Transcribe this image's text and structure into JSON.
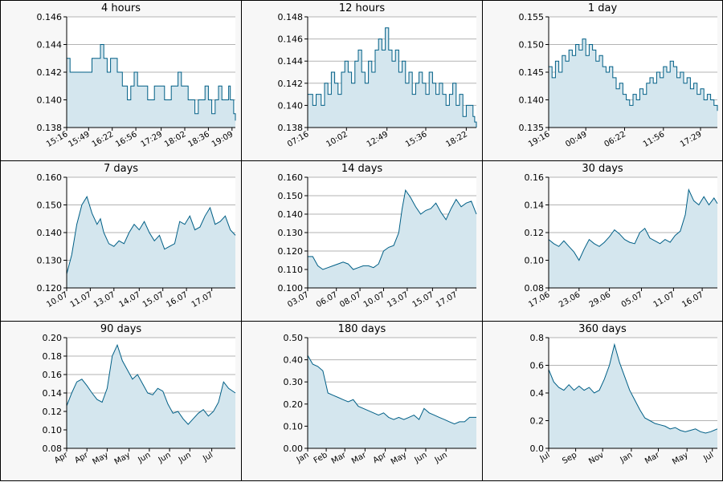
{
  "colors": {
    "line": "#005f86",
    "fill": "#d4e6ee",
    "grid": "#b3b3b3",
    "panel_bg": "#f7f7f7",
    "plot_bg": "#ffffff"
  },
  "chart_data": [
    {
      "type": "area",
      "title": "4 hours",
      "ylim": [
        0.138,
        0.146
      ],
      "yticks": [
        0.138,
        0.14,
        0.142,
        0.144,
        0.146
      ],
      "ytick_labels": [
        "0.138",
        "0.140",
        "0.142",
        "0.144",
        "0.146"
      ],
      "xlim": [
        0,
        100
      ],
      "xtick_labels": [
        "15:16",
        "15:49",
        "16:22",
        "16:56",
        "17:29",
        "18:02",
        "18:36",
        "19:09"
      ],
      "xtick_pos": [
        0,
        13,
        27,
        41,
        56,
        70,
        84,
        98
      ],
      "step": true,
      "x": [
        0,
        2,
        4,
        8,
        12,
        15,
        18,
        20,
        22,
        24,
        26,
        28,
        30,
        33,
        36,
        38,
        40,
        42,
        45,
        48,
        50,
        52,
        55,
        58,
        60,
        62,
        64,
        66,
        68,
        70,
        72,
        74,
        76,
        78,
        80,
        82,
        84,
        86,
        88,
        90,
        92,
        94,
        96,
        97,
        98,
        99,
        100
      ],
      "y": [
        0.143,
        0.142,
        0.142,
        0.142,
        0.142,
        0.143,
        0.143,
        0.144,
        0.143,
        0.142,
        0.143,
        0.143,
        0.142,
        0.141,
        0.14,
        0.141,
        0.142,
        0.141,
        0.141,
        0.14,
        0.14,
        0.141,
        0.141,
        0.14,
        0.14,
        0.141,
        0.141,
        0.142,
        0.141,
        0.141,
        0.14,
        0.14,
        0.139,
        0.14,
        0.14,
        0.141,
        0.14,
        0.139,
        0.14,
        0.141,
        0.14,
        0.14,
        0.141,
        0.14,
        0.14,
        0.139,
        0.1385
      ]
    },
    {
      "type": "area",
      "title": "12 hours",
      "ylim": [
        0.138,
        0.148
      ],
      "yticks": [
        0.138,
        0.14,
        0.142,
        0.144,
        0.146,
        0.148
      ],
      "ytick_labels": [
        "0.138",
        "0.140",
        "0.142",
        "0.144",
        "0.146",
        "0.148"
      ],
      "xlim": [
        0,
        100
      ],
      "xtick_labels": [
        "07:16",
        "10:02",
        "12:49",
        "15:36",
        "18:22"
      ],
      "xtick_pos": [
        0,
        23,
        47,
        70,
        94
      ],
      "step": true,
      "x": [
        0,
        3,
        5,
        8,
        10,
        12,
        14,
        16,
        18,
        20,
        22,
        24,
        26,
        28,
        30,
        32,
        34,
        36,
        38,
        40,
        42,
        44,
        46,
        48,
        50,
        52,
        54,
        56,
        58,
        60,
        62,
        64,
        66,
        68,
        70,
        72,
        74,
        76,
        78,
        80,
        82,
        84,
        86,
        88,
        90,
        92,
        94,
        96,
        97,
        98,
        99,
        100
      ],
      "y": [
        0.141,
        0.14,
        0.141,
        0.14,
        0.142,
        0.141,
        0.143,
        0.142,
        0.141,
        0.143,
        0.144,
        0.143,
        0.142,
        0.144,
        0.145,
        0.143,
        0.142,
        0.144,
        0.143,
        0.145,
        0.146,
        0.145,
        0.147,
        0.145,
        0.144,
        0.145,
        0.143,
        0.144,
        0.142,
        0.143,
        0.141,
        0.142,
        0.143,
        0.142,
        0.141,
        0.143,
        0.142,
        0.141,
        0.142,
        0.141,
        0.14,
        0.141,
        0.142,
        0.14,
        0.141,
        0.139,
        0.14,
        0.14,
        0.14,
        0.139,
        0.1385,
        0.138
      ]
    },
    {
      "type": "area",
      "title": "1 day",
      "ylim": [
        0.135,
        0.155
      ],
      "yticks": [
        0.135,
        0.14,
        0.145,
        0.15,
        0.155
      ],
      "ytick_labels": [
        "0.135",
        "0.140",
        "0.145",
        "0.150",
        "0.155"
      ],
      "xlim": [
        0,
        100
      ],
      "xtick_labels": [
        "19:16",
        "00:49",
        "06:22",
        "11:56",
        "17:29"
      ],
      "xtick_pos": [
        0,
        22,
        45,
        68,
        90
      ],
      "step": true,
      "x": [
        0,
        2,
        4,
        6,
        8,
        10,
        12,
        14,
        16,
        18,
        20,
        22,
        24,
        26,
        28,
        30,
        32,
        34,
        36,
        38,
        40,
        42,
        44,
        46,
        48,
        50,
        52,
        54,
        56,
        58,
        60,
        62,
        64,
        66,
        68,
        70,
        72,
        74,
        76,
        78,
        80,
        82,
        84,
        86,
        88,
        90,
        92,
        94,
        96,
        98,
        100
      ],
      "y": [
        0.146,
        0.144,
        0.147,
        0.145,
        0.148,
        0.147,
        0.149,
        0.148,
        0.15,
        0.149,
        0.151,
        0.148,
        0.15,
        0.149,
        0.147,
        0.148,
        0.146,
        0.145,
        0.146,
        0.144,
        0.142,
        0.143,
        0.141,
        0.14,
        0.139,
        0.141,
        0.14,
        0.142,
        0.141,
        0.143,
        0.144,
        0.143,
        0.145,
        0.144,
        0.146,
        0.145,
        0.147,
        0.146,
        0.144,
        0.145,
        0.143,
        0.144,
        0.142,
        0.143,
        0.141,
        0.142,
        0.14,
        0.141,
        0.14,
        0.139,
        0.138
      ]
    },
    {
      "type": "area",
      "title": "7 days",
      "ylim": [
        0.12,
        0.16
      ],
      "yticks": [
        0.12,
        0.13,
        0.14,
        0.15,
        0.16
      ],
      "ytick_labels": [
        "0.120",
        "0.130",
        "0.140",
        "0.150",
        "0.160"
      ],
      "xlim": [
        0,
        100
      ],
      "xtick_labels": [
        "10.07",
        "11.07",
        "13.07",
        "14.07",
        "15.07",
        "16.07",
        "17.07"
      ],
      "xtick_pos": [
        0,
        14,
        28,
        43,
        57,
        71,
        86
      ],
      "step": false,
      "x": [
        0,
        3,
        6,
        9,
        12,
        15,
        18,
        20,
        22,
        25,
        28,
        31,
        34,
        37,
        40,
        43,
        46,
        49,
        52,
        55,
        58,
        61,
        64,
        67,
        70,
        73,
        76,
        79,
        82,
        85,
        88,
        91,
        94,
        97,
        100
      ],
      "y": [
        0.125,
        0.132,
        0.143,
        0.15,
        0.153,
        0.147,
        0.143,
        0.145,
        0.14,
        0.136,
        0.135,
        0.137,
        0.136,
        0.14,
        0.143,
        0.141,
        0.144,
        0.14,
        0.137,
        0.139,
        0.134,
        0.135,
        0.136,
        0.144,
        0.143,
        0.146,
        0.141,
        0.142,
        0.146,
        0.149,
        0.143,
        0.144,
        0.146,
        0.141,
        0.139
      ]
    },
    {
      "type": "area",
      "title": "14 days",
      "ylim": [
        0.1,
        0.16
      ],
      "yticks": [
        0.1,
        0.11,
        0.12,
        0.13,
        0.14,
        0.15,
        0.16
      ],
      "ytick_labels": [
        "0.100",
        "0.110",
        "0.120",
        "0.130",
        "0.140",
        "0.150",
        "0.160"
      ],
      "xlim": [
        0,
        100
      ],
      "xtick_labels": [
        "03.07",
        "06.07",
        "08.07",
        "10.07",
        "13.07",
        "15.07",
        "17.07"
      ],
      "xtick_pos": [
        0,
        17,
        31,
        45,
        59,
        74,
        88
      ],
      "step": false,
      "x": [
        0,
        3,
        6,
        9,
        12,
        15,
        18,
        21,
        24,
        27,
        30,
        33,
        36,
        39,
        42,
        45,
        48,
        51,
        54,
        56,
        58,
        61,
        64,
        67,
        70,
        73,
        76,
        79,
        82,
        85,
        88,
        91,
        94,
        97,
        100
      ],
      "y": [
        0.117,
        0.117,
        0.112,
        0.11,
        0.111,
        0.112,
        0.113,
        0.114,
        0.113,
        0.11,
        0.111,
        0.112,
        0.112,
        0.111,
        0.113,
        0.12,
        0.122,
        0.123,
        0.13,
        0.143,
        0.153,
        0.149,
        0.144,
        0.14,
        0.142,
        0.143,
        0.146,
        0.141,
        0.137,
        0.143,
        0.148,
        0.144,
        0.146,
        0.147,
        0.14
      ]
    },
    {
      "type": "area",
      "title": "30 days",
      "ylim": [
        0.08,
        0.16
      ],
      "yticks": [
        0.08,
        0.1,
        0.12,
        0.14,
        0.16
      ],
      "ytick_labels": [
        "0.08",
        "0.10",
        "0.12",
        "0.14",
        "0.16"
      ],
      "xlim": [
        0,
        100
      ],
      "xtick_labels": [
        "17.06",
        "23.06",
        "29.06",
        "05.07",
        "11.07",
        "16.07"
      ],
      "xtick_pos": [
        0,
        18,
        36,
        55,
        74,
        91
      ],
      "step": false,
      "x": [
        0,
        3,
        6,
        9,
        12,
        15,
        18,
        21,
        24,
        27,
        30,
        33,
        36,
        39,
        42,
        45,
        48,
        51,
        54,
        57,
        60,
        63,
        66,
        69,
        72,
        75,
        78,
        81,
        83,
        86,
        89,
        92,
        95,
        98,
        100
      ],
      "y": [
        0.115,
        0.112,
        0.11,
        0.114,
        0.11,
        0.106,
        0.1,
        0.108,
        0.115,
        0.112,
        0.11,
        0.113,
        0.117,
        0.122,
        0.119,
        0.115,
        0.113,
        0.112,
        0.12,
        0.123,
        0.116,
        0.114,
        0.112,
        0.115,
        0.113,
        0.118,
        0.121,
        0.133,
        0.151,
        0.143,
        0.14,
        0.146,
        0.14,
        0.145,
        0.141
      ]
    },
    {
      "type": "area",
      "title": "90 days",
      "ylim": [
        0.08,
        0.2
      ],
      "yticks": [
        0.08,
        0.1,
        0.12,
        0.14,
        0.16,
        0.18,
        0.2
      ],
      "ytick_labels": [
        "0.08",
        "0.10",
        "0.12",
        "0.14",
        "0.16",
        "0.18",
        "0.20"
      ],
      "xlim": [
        0,
        100
      ],
      "xtick_labels": [
        "Apr",
        "Apr",
        "May",
        "May",
        "Jun",
        "Jun",
        "Jun",
        "Jul"
      ],
      "xtick_pos": [
        0,
        12,
        24,
        37,
        49,
        61,
        73,
        86
      ],
      "step": false,
      "x": [
        0,
        3,
        6,
        9,
        12,
        15,
        18,
        21,
        24,
        27,
        30,
        33,
        36,
        39,
        42,
        45,
        48,
        51,
        54,
        57,
        60,
        63,
        66,
        69,
        72,
        75,
        78,
        81,
        84,
        87,
        90,
        93,
        96,
        100
      ],
      "y": [
        0.126,
        0.14,
        0.152,
        0.155,
        0.148,
        0.14,
        0.133,
        0.13,
        0.145,
        0.18,
        0.192,
        0.175,
        0.165,
        0.155,
        0.16,
        0.15,
        0.14,
        0.138,
        0.145,
        0.142,
        0.128,
        0.118,
        0.12,
        0.112,
        0.106,
        0.112,
        0.118,
        0.122,
        0.115,
        0.12,
        0.13,
        0.152,
        0.145,
        0.14
      ]
    },
    {
      "type": "area",
      "title": "180 days",
      "ylim": [
        0.0,
        0.5
      ],
      "yticks": [
        0.0,
        0.1,
        0.2,
        0.3,
        0.4,
        0.5
      ],
      "ytick_labels": [
        "0.00",
        "0.10",
        "0.20",
        "0.30",
        "0.40",
        "0.50"
      ],
      "xlim": [
        0,
        100
      ],
      "xtick_labels": [
        "Jan",
        "Feb",
        "Mar",
        "Mar",
        "Apr",
        "May",
        "Jun",
        "Jun"
      ],
      "xtick_pos": [
        0,
        11,
        22,
        34,
        46,
        58,
        70,
        82
      ],
      "step": false,
      "x": [
        0,
        3,
        6,
        9,
        12,
        15,
        18,
        21,
        24,
        27,
        30,
        33,
        36,
        39,
        42,
        45,
        48,
        51,
        54,
        57,
        60,
        63,
        66,
        69,
        72,
        75,
        78,
        81,
        84,
        87,
        90,
        93,
        96,
        100
      ],
      "y": [
        0.42,
        0.38,
        0.37,
        0.35,
        0.25,
        0.24,
        0.23,
        0.22,
        0.21,
        0.22,
        0.19,
        0.18,
        0.17,
        0.16,
        0.15,
        0.16,
        0.14,
        0.13,
        0.14,
        0.13,
        0.14,
        0.15,
        0.13,
        0.18,
        0.16,
        0.15,
        0.14,
        0.13,
        0.12,
        0.11,
        0.12,
        0.12,
        0.14,
        0.14
      ]
    },
    {
      "type": "area",
      "title": "360 days",
      "ylim": [
        0.0,
        0.8
      ],
      "yticks": [
        0.0,
        0.2,
        0.4,
        0.6,
        0.8
      ],
      "ytick_labels": [
        "0.0",
        "0.2",
        "0.4",
        "0.6",
        "0.8"
      ],
      "xlim": [
        0,
        100
      ],
      "xtick_labels": [
        "Jul",
        "Sep",
        "Nov",
        "Jan",
        "Mar",
        "May",
        "Jul"
      ],
      "xtick_pos": [
        0,
        16,
        32,
        49,
        65,
        82,
        97
      ],
      "step": false,
      "x": [
        0,
        3,
        6,
        9,
        12,
        15,
        18,
        21,
        24,
        27,
        30,
        33,
        36,
        39,
        42,
        45,
        48,
        51,
        54,
        57,
        60,
        63,
        66,
        69,
        72,
        75,
        78,
        81,
        84,
        87,
        90,
        93,
        96,
        100
      ],
      "y": [
        0.57,
        0.48,
        0.44,
        0.42,
        0.46,
        0.42,
        0.45,
        0.42,
        0.44,
        0.4,
        0.42,
        0.5,
        0.6,
        0.75,
        0.62,
        0.52,
        0.42,
        0.35,
        0.28,
        0.22,
        0.2,
        0.18,
        0.17,
        0.16,
        0.14,
        0.15,
        0.13,
        0.12,
        0.13,
        0.14,
        0.12,
        0.11,
        0.12,
        0.14
      ]
    }
  ]
}
